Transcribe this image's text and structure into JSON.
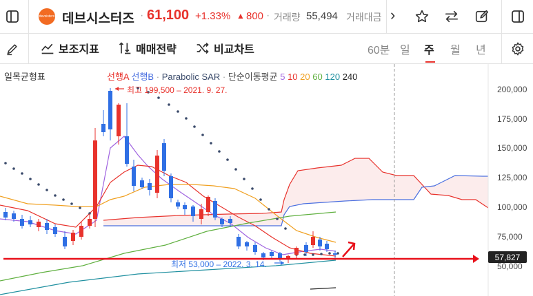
{
  "header": {
    "stock_name": "데브시스터즈",
    "logo_text": "devsisters",
    "price": "61,100",
    "change_pct": "+1.33%",
    "change_arrow": "▲",
    "change_abs": "800",
    "volume_label": "거래량",
    "volume_value": "55,494",
    "trade_amount_label": "거래대금",
    "more_arrow": "›"
  },
  "toolbar": {
    "indicators_label": "보조지표",
    "strategy_label": "매매전략",
    "compare_label": "비교차트",
    "periods": [
      "60분",
      "일",
      "주",
      "월",
      "년"
    ],
    "active_period": "주"
  },
  "chart": {
    "ichimoku_label": "일목균형표",
    "legend": {
      "span_a": "선행A",
      "span_b": "선행B",
      "dot": "·",
      "psar": "Parabolic SAR",
      "ma_label": "단순이동평균",
      "ma_periods": [
        "5",
        "10",
        "20",
        "60",
        "120",
        "240"
      ]
    },
    "high_annotation": "최고 199,500 – 2021. 9. 27.",
    "low_annotation": "최저 53,000 – 2022. 3. 14.",
    "current_price_tag": "57,827",
    "y_axis_labels": [
      "200,000",
      "175,000",
      "150,000",
      "125,000",
      "100,000",
      "75,000",
      "50,000"
    ],
    "colors": {
      "up": "#e8322c",
      "down": "#2f6fe4",
      "span_a": "#e8322c",
      "span_b": "#4a6fe0",
      "ma5": "#a064e0",
      "ma10": "#e8322c",
      "ma20": "#f0a020",
      "ma60": "#60b040",
      "ma120": "#2090a0",
      "ma240": "#222222",
      "psar": "#3a4a6a"
    }
  }
}
